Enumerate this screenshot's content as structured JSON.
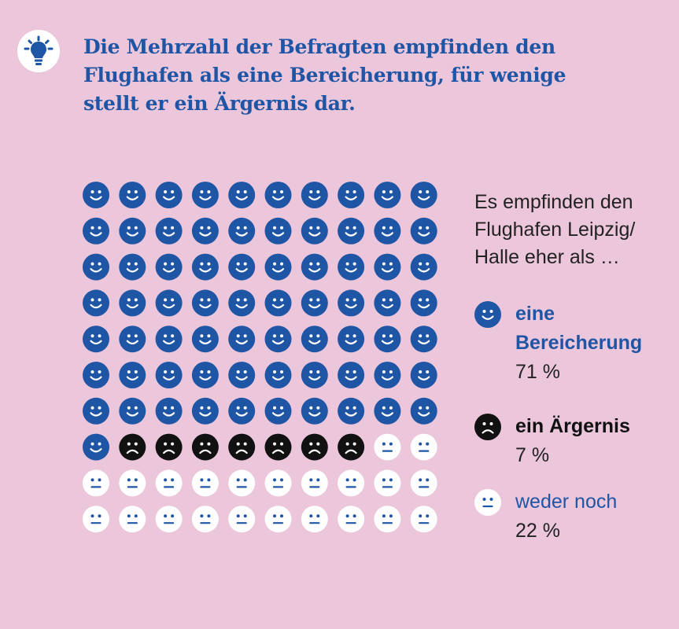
{
  "title": "Die Mehrzahl der Befragten empfinden den Flughafen als eine Bereicherung, für wenige stellt er ein Ärgernis dar.",
  "header_icon": "lightbulb-icon",
  "legend_intro": "Es empfinden den Flughafen Leipzig/ Halle eher als …",
  "colors": {
    "background": "#ecc6da",
    "bereicherung": "#1f55a5",
    "aergernis": "#111111",
    "weder_noch": "#ffffff",
    "title": "#1f55a5"
  },
  "chart_data": {
    "type": "pictogram",
    "units_total": 100,
    "columns": 10,
    "rows": 10,
    "series": [
      {
        "name": "eine Bereicherung",
        "value": 71,
        "value_label": "71 %",
        "icon": "smiling-face-icon",
        "color": "#1f55a5"
      },
      {
        "name": "ein Ärgernis",
        "value": 7,
        "value_label": "7 %",
        "icon": "frowning-face-icon",
        "color": "#111111"
      },
      {
        "name": "weder noch",
        "value": 22,
        "value_label": "22 %",
        "icon": "neutral-face-icon",
        "color": "#ffffff"
      }
    ]
  }
}
